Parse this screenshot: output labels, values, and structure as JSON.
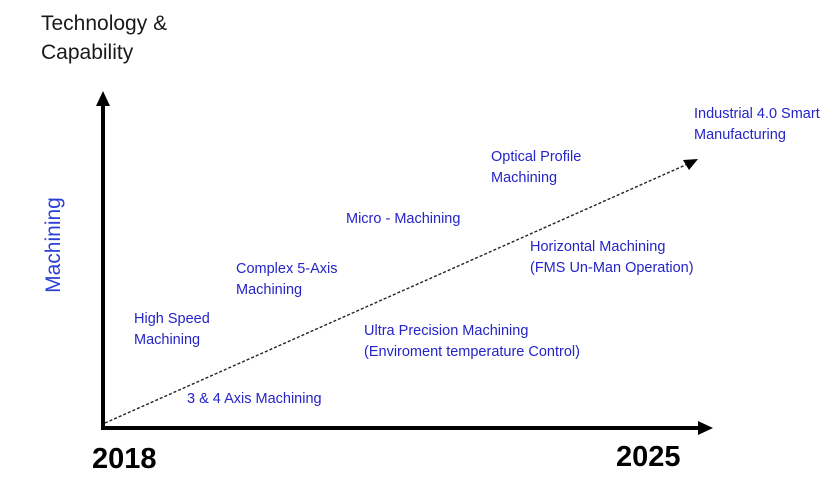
{
  "title": {
    "line1": "Technology &",
    "line2": "Capability"
  },
  "y_axis_label": "Machining",
  "x_axis": {
    "start": "2018",
    "end": "2025"
  },
  "stages": [
    {
      "line1": "3 & 4 Axis Machining"
    },
    {
      "line1": "High Speed",
      "line2": "Machining"
    },
    {
      "line1": "Complex 5-Axis",
      "line2": "Machining"
    },
    {
      "line1": "Micro - Machining"
    },
    {
      "line1": "Ultra Precision Machining",
      "line2": "(Enviroment temperature Control)"
    },
    {
      "line1": "Optical Profile",
      "line2": "Machining"
    },
    {
      "line1": "Horizontal Machining",
      "line2": "(FMS Un-Man Operation)"
    },
    {
      "line1": "Industrial 4.0 Smart",
      "line2": "Manufacturing"
    }
  ],
  "colors": {
    "label": "#2424c8",
    "axis": "#000000",
    "ylabel": "#2b3fd6"
  }
}
